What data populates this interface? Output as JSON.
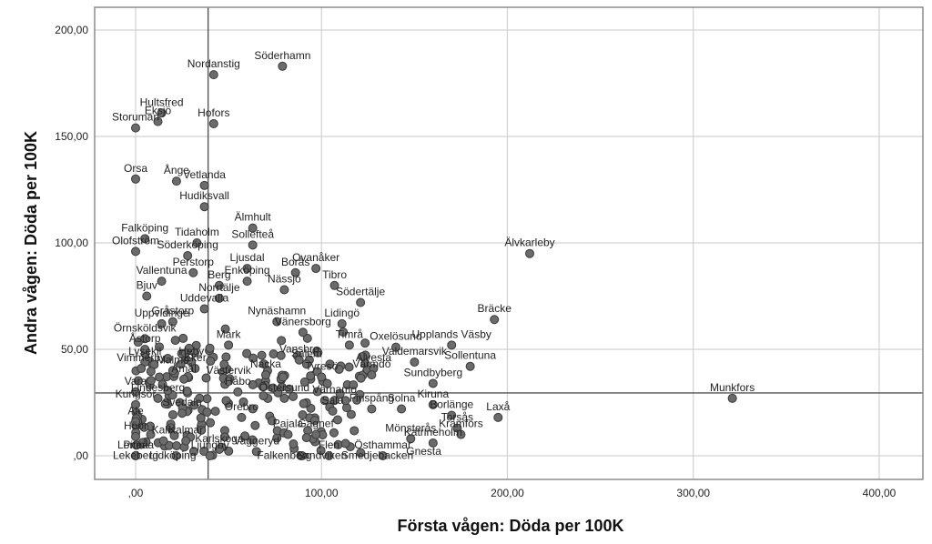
{
  "chart_data": {
    "type": "scatter",
    "title": "",
    "xlabel": "Första vågen: Döda per 100K",
    "ylabel": "Andra vågen: Döda per 100K",
    "xlim": [
      -22,
      425
    ],
    "ylim": [
      -11,
      211
    ],
    "x_ticks": [
      0,
      100,
      200,
      300,
      400
    ],
    "x_tick_labels": [
      ",00",
      "100,00",
      "200,00",
      "300,00",
      "400,00"
    ],
    "y_ticks": [
      0,
      50,
      100,
      150,
      200
    ],
    "y_tick_labels": [
      ",00",
      "50,00",
      "100,00",
      "150,00",
      "200,00"
    ],
    "grid": true,
    "legend": "none",
    "reference_lines": {
      "x": 39,
      "y": 29.5
    },
    "colors": {
      "marker_fill": "#6b6b6b",
      "marker_edge": "#3a3a3a",
      "grid": "#d2d2d2",
      "ref_line": "#555555",
      "frame": "#8c8c8c"
    },
    "labeled_points": [
      {
        "label": "Söderhamn",
        "x": 79,
        "y": 183
      },
      {
        "label": "Nordanstig",
        "x": 42,
        "y": 179
      },
      {
        "label": "Hultsfred",
        "x": 14,
        "y": 161
      },
      {
        "label": "Eksjö",
        "x": 12,
        "y": 157
      },
      {
        "label": "Hofors",
        "x": 42,
        "y": 156
      },
      {
        "label": "Storuman",
        "x": 0,
        "y": 154
      },
      {
        "label": "Orsa",
        "x": 0,
        "y": 130
      },
      {
        "label": "Ånge",
        "x": 22,
        "y": 129
      },
      {
        "label": "Vetlanda",
        "x": 37,
        "y": 127
      },
      {
        "label": "Hudiksvall",
        "x": 37,
        "y": 117
      },
      {
        "label": "Älmhult",
        "x": 63,
        "y": 107
      },
      {
        "label": "Sollefteå",
        "x": 63,
        "y": 99
      },
      {
        "label": "Älvkarleby",
        "x": 212,
        "y": 95
      },
      {
        "label": "Falköping",
        "x": 5,
        "y": 102
      },
      {
        "label": "Tidaholm",
        "x": 33,
        "y": 100
      },
      {
        "label": "Olofström",
        "x": 0,
        "y": 96
      },
      {
        "label": "Söderköping",
        "x": 28,
        "y": 94
      },
      {
        "label": "Borås",
        "x": 86,
        "y": 86
      },
      {
        "label": "Ljusdal",
        "x": 60,
        "y": 88
      },
      {
        "label": "Ovanåker",
        "x": 97,
        "y": 88
      },
      {
        "label": "Perstorp",
        "x": 31,
        "y": 86
      },
      {
        "label": "Vallentuna",
        "x": 14,
        "y": 82
      },
      {
        "label": "Tibro",
        "x": 107,
        "y": 80
      },
      {
        "label": "Berg",
        "x": 45,
        "y": 80
      },
      {
        "label": "Enköping",
        "x": 60,
        "y": 82
      },
      {
        "label": "Nässjö",
        "x": 80,
        "y": 78
      },
      {
        "label": "Norrtälje",
        "x": 45,
        "y": 74
      },
      {
        "label": "Bjuv",
        "x": 6,
        "y": 75
      },
      {
        "label": "Södertälje",
        "x": 121,
        "y": 72
      },
      {
        "label": "Uddevalla",
        "x": 37,
        "y": 69
      },
      {
        "label": "Nynäshamn",
        "x": 76,
        "y": 63
      },
      {
        "label": "Bräcke",
        "x": 193,
        "y": 64
      },
      {
        "label": "Uppvidinge",
        "x": 14,
        "y": 62
      },
      {
        "label": "Gråstorp",
        "x": 20,
        "y": 63
      },
      {
        "label": "Lidingö",
        "x": 111,
        "y": 62
      },
      {
        "label": "Örnsköldsvik",
        "x": 5,
        "y": 55
      },
      {
        "label": "Mark",
        "x": 50,
        "y": 52
      },
      {
        "label": "Vänersborg",
        "x": 90,
        "y": 58
      },
      {
        "label": "Timrå",
        "x": 115,
        "y": 52
      },
      {
        "label": "Oxelösund",
        "x": 140,
        "y": 51
      },
      {
        "label": "Upplands Väsby",
        "x": 170,
        "y": 52
      },
      {
        "label": "Åstorp",
        "x": 5,
        "y": 50
      },
      {
        "label": "Vansbro",
        "x": 88,
        "y": 45
      },
      {
        "label": "Salem",
        "x": 92,
        "y": 43
      },
      {
        "label": "Heby",
        "x": 30,
        "y": 44
      },
      {
        "label": "Lysekil",
        "x": 5,
        "y": 44
      },
      {
        "label": "Alvesta",
        "x": 128,
        "y": 41
      },
      {
        "label": "Valdemarsvik",
        "x": 150,
        "y": 44
      },
      {
        "label": "Malmö",
        "x": 20,
        "y": 40
      },
      {
        "label": "Eker",
        "x": 32,
        "y": 41
      },
      {
        "label": "Vimmerby",
        "x": 3,
        "y": 41
      },
      {
        "label": "Nacka",
        "x": 70,
        "y": 38
      },
      {
        "label": "Tyresö",
        "x": 100,
        "y": 37
      },
      {
        "label": "Värmdö",
        "x": 127,
        "y": 38
      },
      {
        "label": "Sollentuna",
        "x": 180,
        "y": 42
      },
      {
        "label": "Åmål",
        "x": 26,
        "y": 36
      },
      {
        "label": "Västervik",
        "x": 50,
        "y": 35
      },
      {
        "label": "Sundbyberg",
        "x": 160,
        "y": 34
      },
      {
        "label": "Vara",
        "x": 0,
        "y": 30
      },
      {
        "label": "Håbo",
        "x": 55,
        "y": 30
      },
      {
        "label": "Munkfors",
        "x": 321,
        "y": 27
      },
      {
        "label": "Lindesberg",
        "x": 12,
        "y": 27
      },
      {
        "label": "Östersund",
        "x": 80,
        "y": 27
      },
      {
        "label": "Värnamo",
        "x": 107,
        "y": 26
      },
      {
        "label": "Solna",
        "x": 143,
        "y": 22
      },
      {
        "label": "Kiruna",
        "x": 160,
        "y": 24
      },
      {
        "label": "Kungsör",
        "x": 0,
        "y": 24
      },
      {
        "label": "Borlänge",
        "x": 170,
        "y": 19
      },
      {
        "label": "Laxå",
        "x": 195,
        "y": 18
      },
      {
        "label": "Sala",
        "x": 106,
        "y": 21
      },
      {
        "label": "Finspång",
        "x": 127,
        "y": 22
      },
      {
        "label": "Svedala",
        "x": 25,
        "y": 20
      },
      {
        "label": "Örebro",
        "x": 57,
        "y": 18
      },
      {
        "label": "Torsås",
        "x": 173,
        "y": 13
      },
      {
        "label": "Ale",
        "x": 0,
        "y": 16
      },
      {
        "label": "Mönsterås",
        "x": 148,
        "y": 8
      },
      {
        "label": "Kramfors",
        "x": 175,
        "y": 10
      },
      {
        "label": "Pajala",
        "x": 82,
        "y": 10
      },
      {
        "label": "Gagnef",
        "x": 97,
        "y": 10
      },
      {
        "label": "Höör",
        "x": 0,
        "y": 9
      },
      {
        "label": "Kalix",
        "x": 15,
        "y": 7
      },
      {
        "label": "Kalmar",
        "x": 27,
        "y": 7
      },
      {
        "label": "Katrineholm",
        "x": 160,
        "y": 6
      },
      {
        "label": "Karlskoga",
        "x": 45,
        "y": 3
      },
      {
        "label": "Vaggeryd",
        "x": 65,
        "y": 2
      },
      {
        "label": "Flen",
        "x": 104,
        "y": 0
      },
      {
        "label": "Östhammar",
        "x": 133,
        "y": 0
      },
      {
        "label": "Lomma",
        "x": 0,
        "y": 0
      },
      {
        "label": "Piteå",
        "x": 0,
        "y": 0
      },
      {
        "label": "Lekeberg",
        "x": 0,
        "y": -5
      },
      {
        "label": "Lidköping",
        "x": 20,
        "y": -5
      },
      {
        "label": "Ljungby",
        "x": 40,
        "y": 0
      },
      {
        "label": "Falkenberg",
        "x": 80,
        "y": -5
      },
      {
        "label": "Sandviken",
        "x": 100,
        "y": -5
      },
      {
        "label": "Smedjebacken",
        "x": 130,
        "y": -5
      },
      {
        "label": "Gnesta",
        "x": 155,
        "y": -3
      }
    ],
    "unlabeled_points_note": "dense cluster of ~200 additional unlabeled municipalities in x 0–130, y 0–60"
  }
}
